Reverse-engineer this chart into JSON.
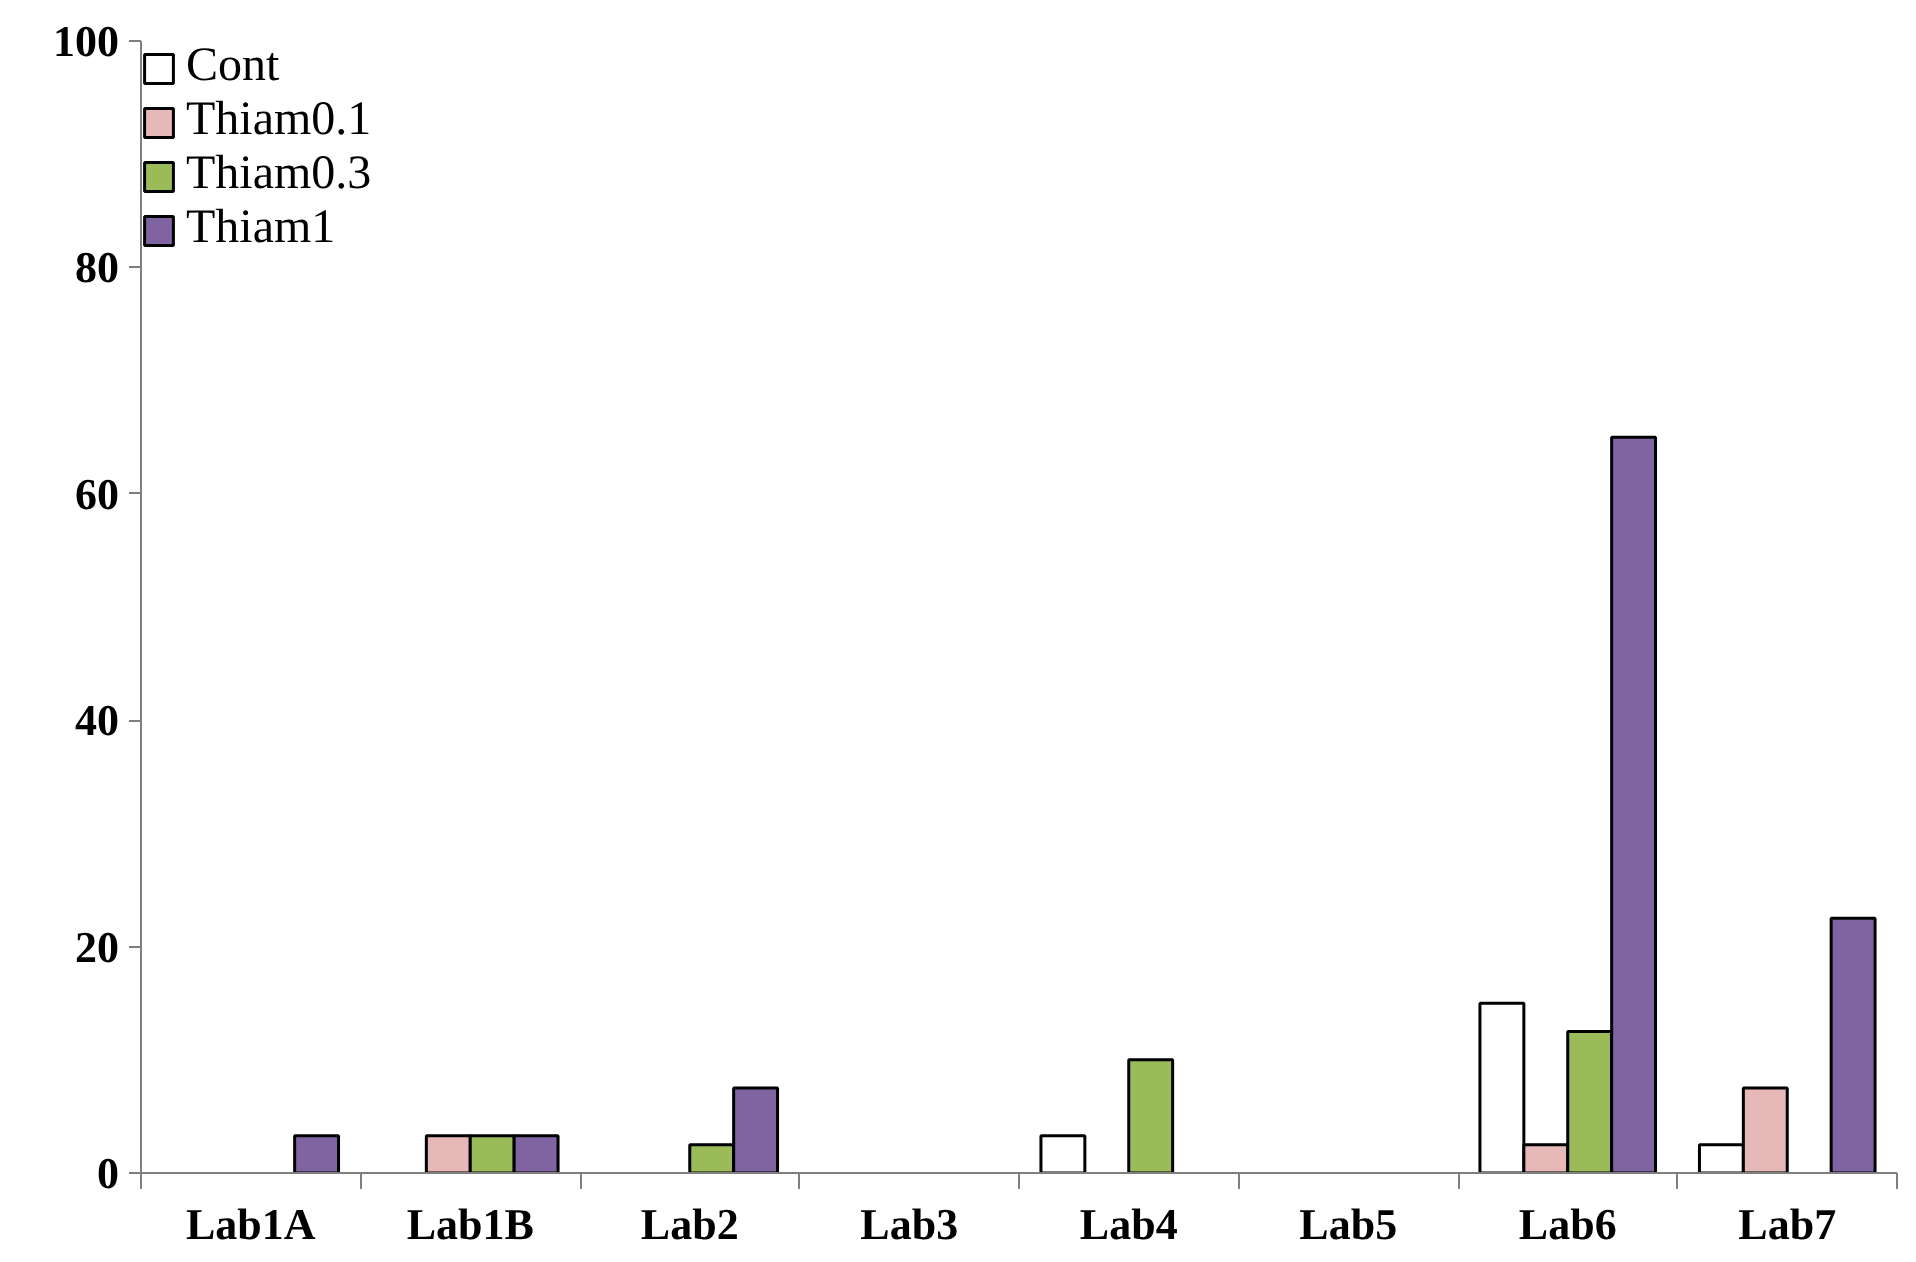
{
  "chart_data": {
    "type": "bar",
    "categories": [
      "Lab1A",
      "Lab1B",
      "Lab2",
      "Lab3",
      "Lab4",
      "Lab5",
      "Lab6",
      "Lab7"
    ],
    "series": [
      {
        "name": "Cont",
        "color": "#ffffff",
        "values": [
          null,
          null,
          null,
          null,
          3.3,
          null,
          15,
          2.5
        ]
      },
      {
        "name": "Thiam0.1",
        "color": "#e6b9b8",
        "values": [
          null,
          3.3,
          null,
          null,
          null,
          null,
          2.5,
          7.5
        ]
      },
      {
        "name": "Thiam0.3",
        "color": "#9bbb59",
        "values": [
          null,
          3.3,
          2.5,
          null,
          10,
          null,
          12.5,
          null
        ]
      },
      {
        "name": "Thiam1",
        "color": "#8064a2",
        "values": [
          3.3,
          3.3,
          7.5,
          null,
          null,
          null,
          65,
          22.5
        ]
      }
    ],
    "ylim": [
      0,
      100
    ],
    "yticks": [
      0,
      20,
      40,
      60,
      80,
      100
    ],
    "grid": false,
    "legend": "top left"
  }
}
